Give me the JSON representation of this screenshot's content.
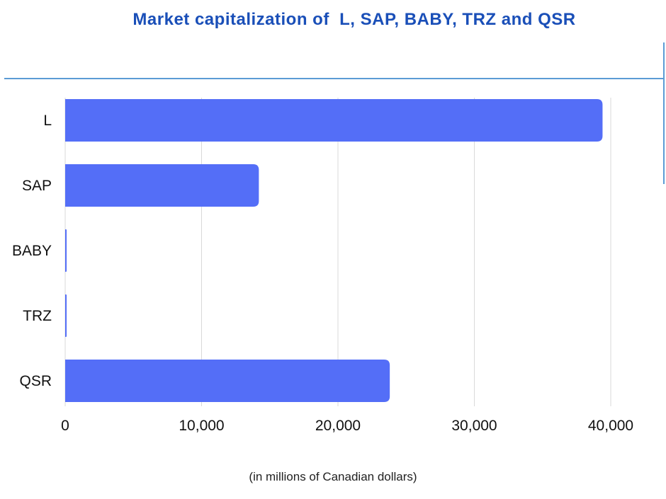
{
  "colors": {
    "title": "#1a4fb8",
    "bar": "#546ef7",
    "grid": "#d9d9d9",
    "divider": "#5b9bd5",
    "text": "#111111"
  },
  "chart_data": {
    "type": "bar",
    "orientation": "horizontal",
    "title": "Market capitalization of  L, SAP, BABY, TRZ and QSR",
    "categories": [
      "L",
      "SAP",
      "BABY",
      "TRZ",
      "QSR"
    ],
    "values": [
      39400,
      14200,
      50,
      50,
      23800
    ],
    "xlabel": "(in millions of Canadian dollars)",
    "ylabel": "",
    "xlim": [
      0,
      40000
    ],
    "x_ticks": [
      "0",
      "10,000",
      "20,000",
      "30,000",
      "40,000"
    ],
    "grid": true,
    "legend": "none"
  }
}
